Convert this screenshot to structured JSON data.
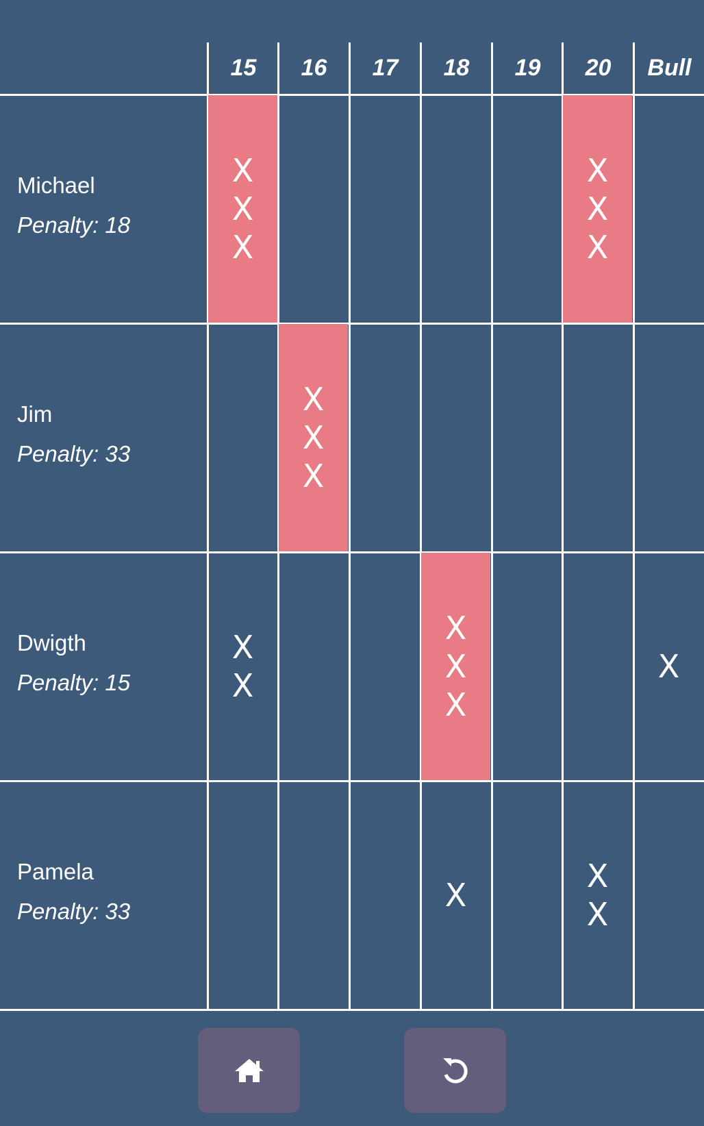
{
  "header": {
    "columns": [
      "15",
      "16",
      "17",
      "18",
      "19",
      "20",
      "Bull"
    ]
  },
  "players": [
    {
      "name": "Michael",
      "penalty": "Penalty: 18",
      "marks": [
        3,
        0,
        0,
        0,
        0,
        3,
        0
      ]
    },
    {
      "name": "Jim",
      "penalty": "Penalty: 33",
      "marks": [
        0,
        3,
        0,
        0,
        0,
        0,
        0
      ]
    },
    {
      "name": "Dwigth",
      "penalty": "Penalty: 15",
      "marks": [
        2,
        0,
        0,
        3,
        0,
        0,
        1
      ]
    },
    {
      "name": "Pamela",
      "penalty": "Penalty: 33",
      "marks": [
        0,
        0,
        0,
        1,
        0,
        2,
        0
      ]
    }
  ],
  "mark_symbol": "X",
  "footer": {
    "home_icon": "home-icon",
    "undo_icon": "undo-icon"
  },
  "colors": {
    "background": "#3d5a7a",
    "closed_cell": "#e87b84",
    "button": "#655d7c",
    "lines": "#ffffff"
  }
}
